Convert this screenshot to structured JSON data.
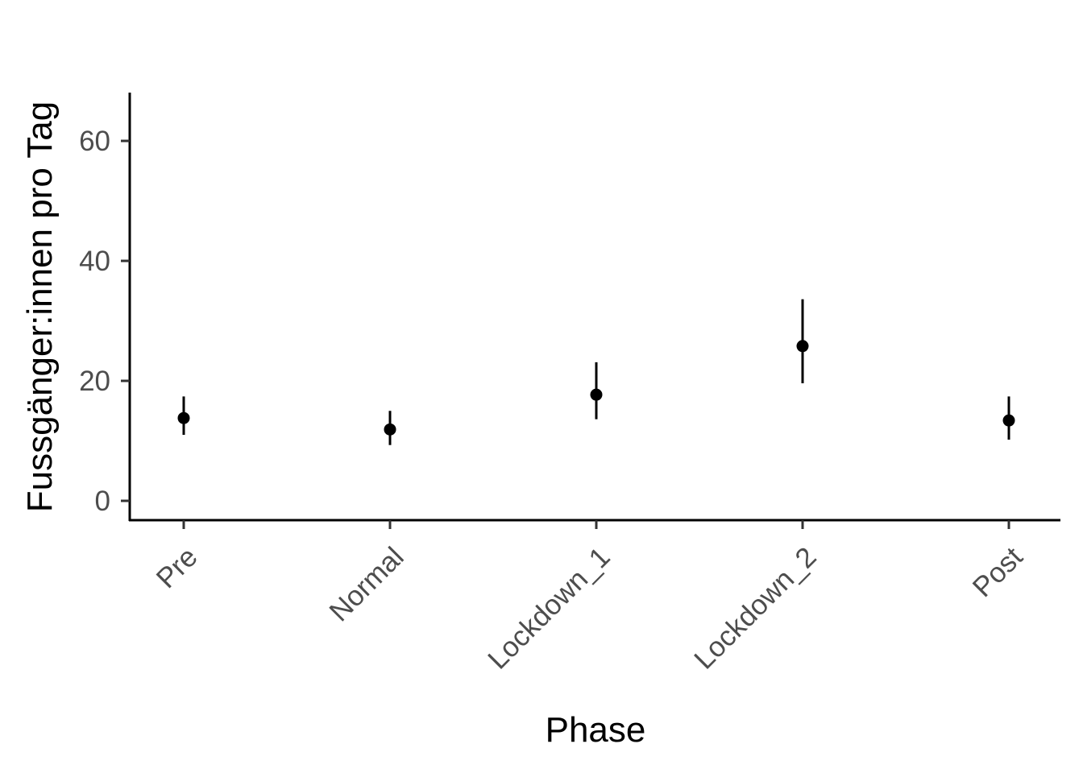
{
  "chart_data": {
    "type": "scatter",
    "subtype": "pointrange",
    "xlabel": "Phase",
    "ylabel": "Fussgänger:innen pro Tag",
    "categories": [
      "Pre",
      "Normal",
      "Lockdown_1",
      "Lockdown_2",
      "Post"
    ],
    "series": [
      {
        "values": [
          13.8,
          11.9,
          17.7,
          25.8,
          13.4
        ],
        "lower": [
          11.0,
          9.3,
          13.6,
          19.6,
          10.2
        ],
        "upper": [
          17.4,
          15.0,
          23.1,
          33.6,
          17.4
        ]
      }
    ],
    "ylim": [
      -3,
      68
    ],
    "yticks": [
      0,
      20,
      40,
      60
    ],
    "grid": false,
    "legend": "none",
    "colors": {
      "points": "#000000",
      "axis": "#000000",
      "tick_labels": "#4d4d4d"
    }
  }
}
